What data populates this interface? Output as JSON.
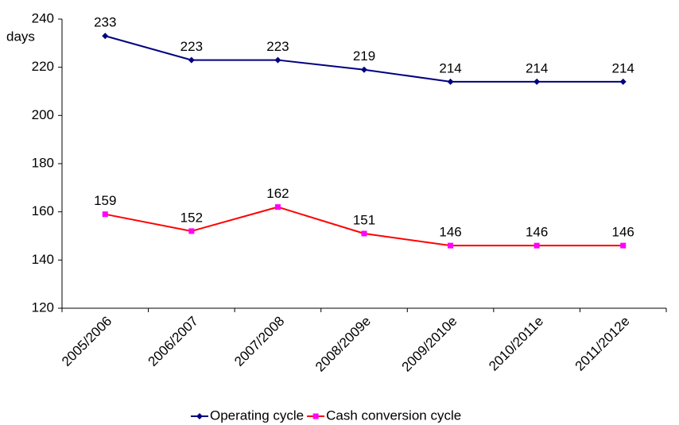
{
  "chart_data": {
    "type": "line",
    "ylabel": "days",
    "categories": [
      "2005/2006",
      "2006/2007",
      "2007/2008",
      "2008/2009e",
      "2009/2010e",
      "2010/2011e",
      "2011/2012e"
    ],
    "series": [
      {
        "name": "Operating cycle",
        "color": "#000080",
        "marker": "diamond",
        "marker_color": "#000080",
        "values": [
          233,
          223,
          223,
          219,
          214,
          214,
          214
        ]
      },
      {
        "name": "Cash conversion cycle",
        "color": "#ff0000",
        "marker": "square",
        "marker_color": "#ff00ff",
        "values": [
          159,
          152,
          162,
          151,
          146,
          146,
          146
        ]
      }
    ],
    "ylim": [
      120,
      240
    ],
    "yticks": [
      120,
      140,
      160,
      180,
      200,
      220,
      240
    ],
    "grid": false,
    "legend": "bottom"
  }
}
